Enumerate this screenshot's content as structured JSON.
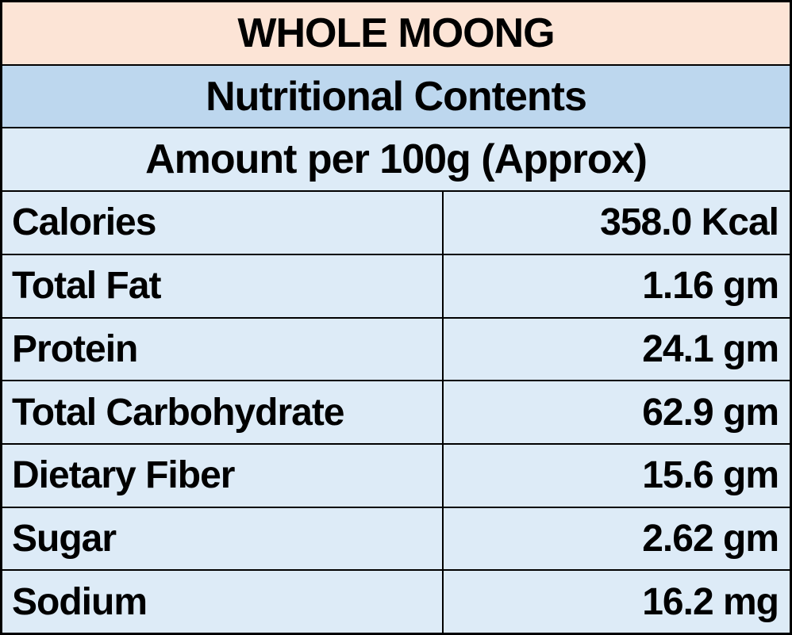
{
  "table": {
    "title": "WHOLE MOONG",
    "subtitle": "Nutritional Contents",
    "amount_header": "Amount per 100g (Approx)",
    "rows": [
      {
        "label": "Calories",
        "value": "358.0 Kcal"
      },
      {
        "label": "Total Fat",
        "value": "1.16 gm"
      },
      {
        "label": "Protein",
        "value": "24.1 gm"
      },
      {
        "label": "Total Carbohydrate",
        "value": "62.9 gm"
      },
      {
        "label": "Dietary Fiber",
        "value": "15.6 gm"
      },
      {
        "label": "Sugar",
        "value": "2.62 gm"
      },
      {
        "label": "Sodium",
        "value": "16.2 mg"
      }
    ],
    "colors": {
      "title_bg": "#FCE4D6",
      "subtitle_bg": "#BDD7EE",
      "body_bg": "#DDEBF7",
      "border": "#000000",
      "text": "#000000"
    }
  },
  "chart_data": {
    "type": "table",
    "title": "WHOLE MOONG",
    "subtitle": "Nutritional Contents",
    "unit_note": "Amount per 100g (Approx)",
    "categories": [
      "Calories",
      "Total Fat",
      "Protein",
      "Total Carbohydrate",
      "Dietary Fiber",
      "Sugar",
      "Sodium"
    ],
    "values": [
      358.0,
      1.16,
      24.1,
      62.9,
      15.6,
      2.62,
      16.2
    ],
    "units": [
      "Kcal",
      "gm",
      "gm",
      "gm",
      "gm",
      "gm",
      "mg"
    ]
  }
}
